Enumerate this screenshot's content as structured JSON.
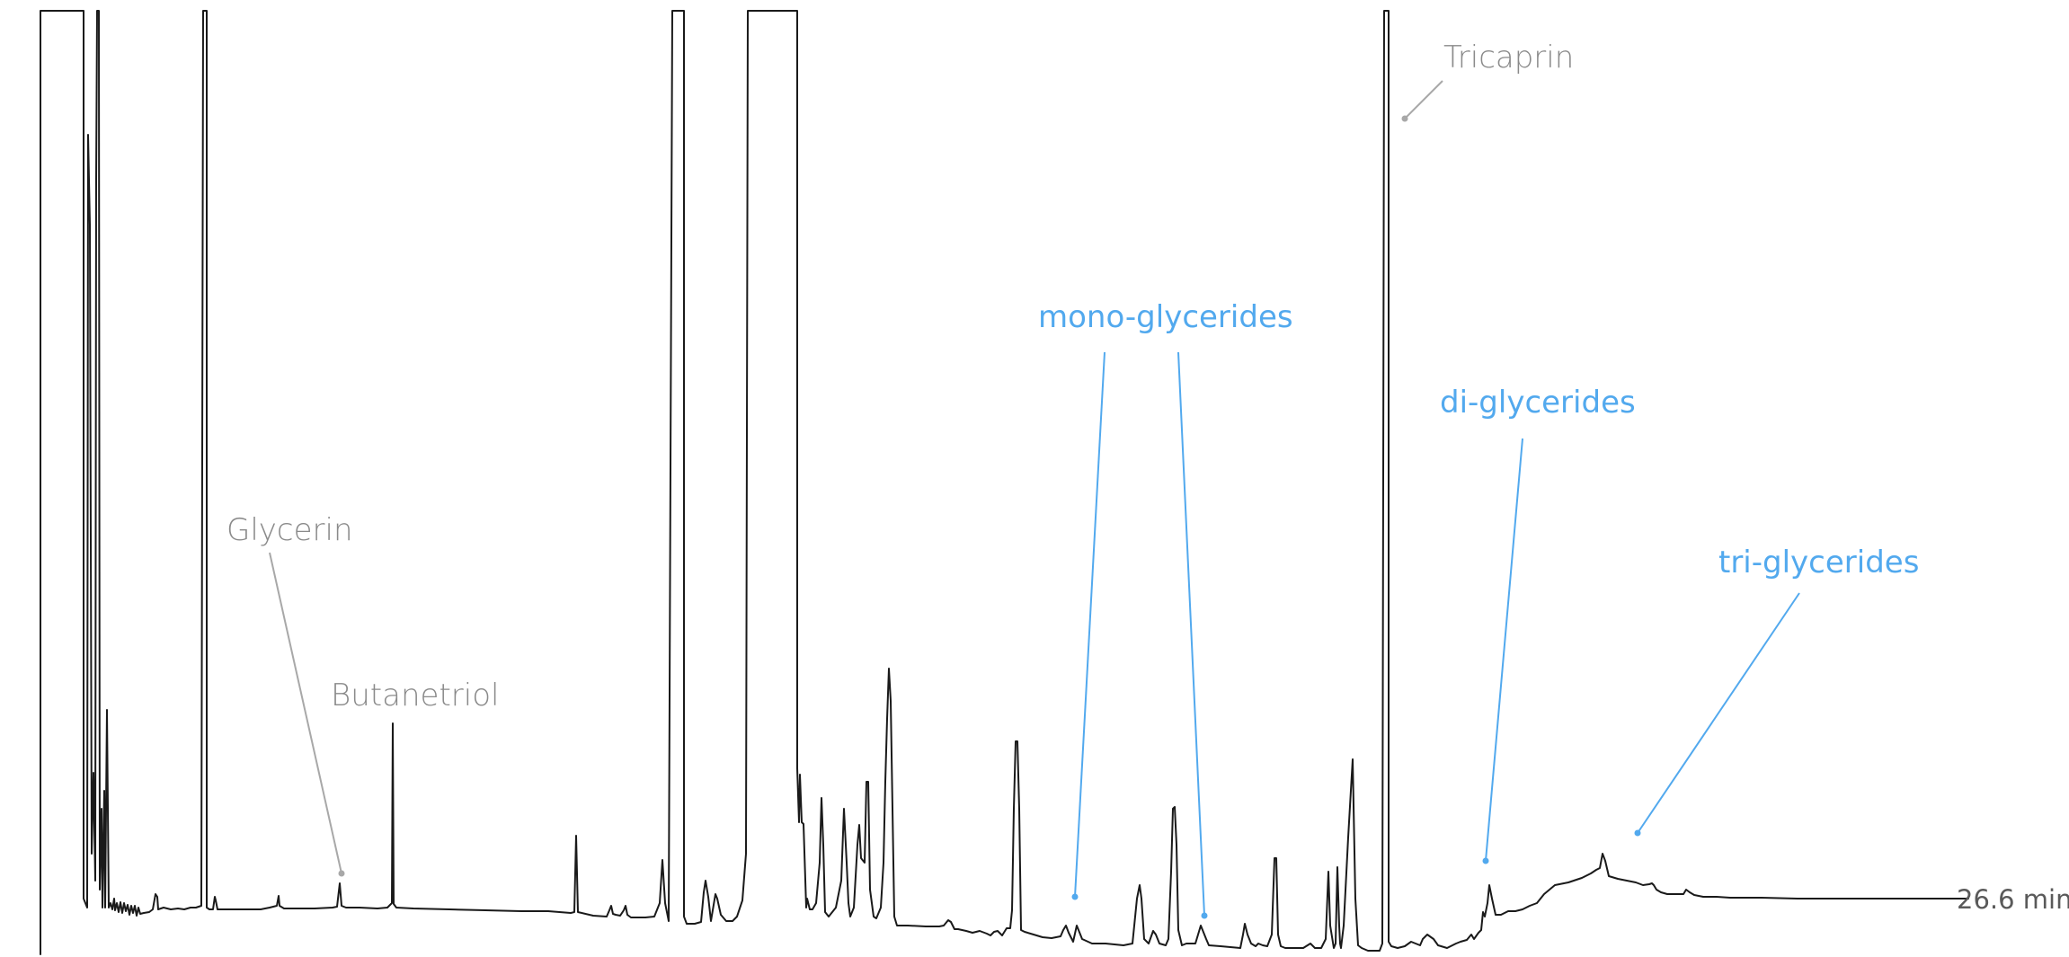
{
  "chart_data": {
    "type": "line",
    "title": "",
    "xlabel": "",
    "ylabel": "",
    "end_marker": "26.6 min",
    "grid": false,
    "legend": "none",
    "annotations": [
      {
        "text": "Glycerin",
        "group": "standard",
        "color": "#a8a8a8"
      },
      {
        "text": "Butanetriol",
        "group": "standard",
        "color": "#a8a8a8"
      },
      {
        "text": "Tricaprin",
        "group": "standard",
        "color": "#a8a8a8"
      },
      {
        "text": "mono-glycerides",
        "group": "target",
        "color": "#52a9ee"
      },
      {
        "text": "di-glycerides",
        "group": "target",
        "color": "#52a9ee"
      },
      {
        "text": "tri-glycerides",
        "group": "target",
        "color": "#52a9ee"
      }
    ],
    "colors": {
      "trace": "#1a1a1a",
      "standard": "#a8a8a8",
      "target": "#52a9ee"
    }
  }
}
